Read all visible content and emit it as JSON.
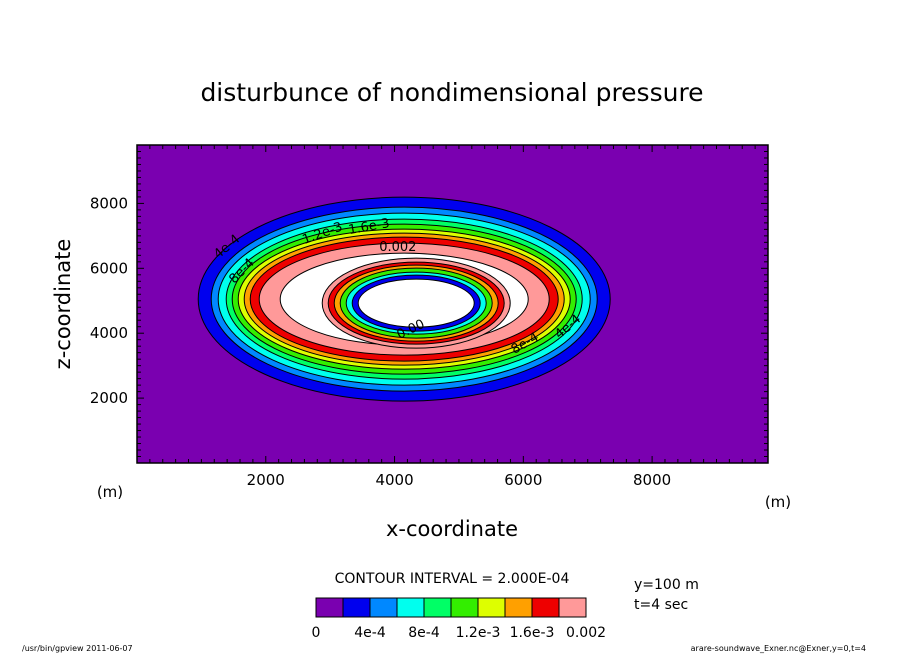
{
  "chart_data": {
    "type": "contour",
    "title": "disturbunce of nondimensional pressure",
    "xlabel": "x-coordinate",
    "ylabel": "z-coordinate",
    "x_unit": "(m)",
    "y_unit": "(m)",
    "x_unit_left": "(m)",
    "xlim": [
      0,
      9800
    ],
    "ylim": [
      0,
      9800
    ],
    "xticks": [
      "2000",
      "4000",
      "6000",
      "8000"
    ],
    "xtick_values": [
      2000,
      4000,
      6000,
      8000
    ],
    "yticks": [
      "2000",
      "4000",
      "6000",
      "8000"
    ],
    "ytick_values": [
      2000,
      4000,
      6000,
      8000
    ],
    "contour_interval_text": "CONTOUR INTERVAL = 2.000E-04",
    "background_color": "#7a00b0",
    "levels": [
      {
        "value": 0.0,
        "color": "#7a00b0"
      },
      {
        "value": 0.0002,
        "color": "#0000ee"
      },
      {
        "value": 0.0004,
        "color": "#0088ff"
      },
      {
        "value": 0.0006,
        "color": "#00ffee"
      },
      {
        "value": 0.0008,
        "color": "#00ff66"
      },
      {
        "value": 0.001,
        "color": "#33ee00"
      },
      {
        "value": 0.0012,
        "color": "#ddff00"
      },
      {
        "value": 0.0014,
        "color": "#ffa000"
      },
      {
        "value": 0.0016,
        "color": "#ee0000"
      },
      {
        "value": 0.0018,
        "color": "#ff9999"
      },
      {
        "value": 0.002,
        "color": "#ffffff"
      }
    ],
    "center": [
      4150,
      5050
    ],
    "colorbar_labels": [
      "0",
      "4e-4",
      "8e-4",
      "1.2e-3",
      "1.6e-3",
      "0.002"
    ],
    "contour_labels": [
      "4e-4",
      "8e-4",
      "1.2e-3",
      "1.6e-3",
      "0.002",
      "0.00"
    ],
    "info": [
      "y=100 m",
      "t=4 sec"
    ]
  },
  "footer": {
    "left": "/usr/bin/gpview  2011-06-07",
    "right": "arare-soundwave_Exner.nc@Exner,y=0,t=4"
  }
}
